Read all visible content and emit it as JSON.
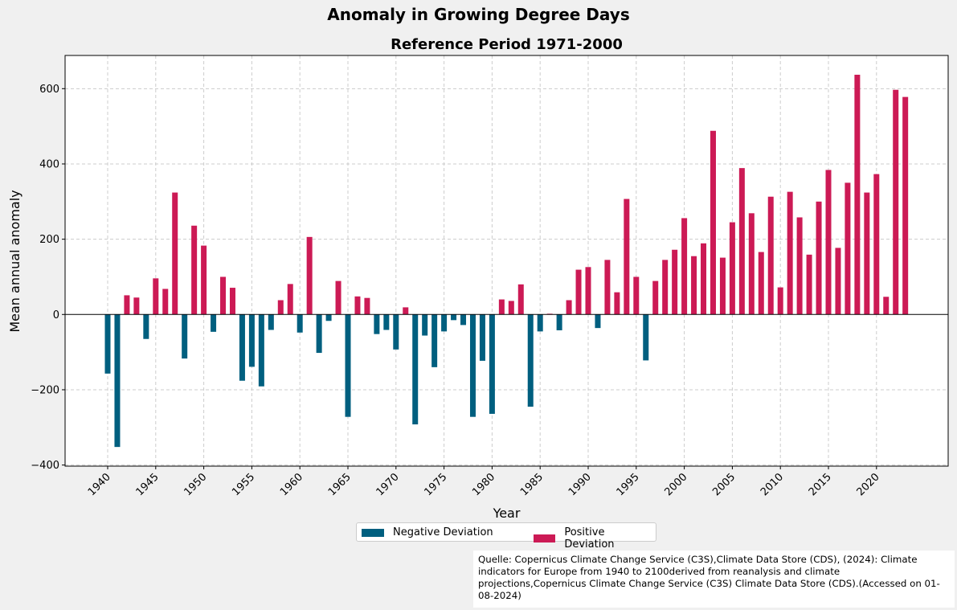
{
  "colors": {
    "negative": "#005f7f",
    "positive": "#cc1a55",
    "grid": "#cccccc",
    "background": "#f0f0f0"
  },
  "chart_data": {
    "type": "bar",
    "suptitle": "Anomaly in Growing Degree Days",
    "title": "Reference Period 1971-2000",
    "xlabel": "Year",
    "ylabel": "Mean annual anomaly",
    "ylim": [
      -405,
      690
    ],
    "yticks": [
      -400,
      -200,
      0,
      200,
      400,
      600
    ],
    "ytick_labels": [
      "−400",
      "−200",
      "0",
      "200",
      "400",
      "600"
    ],
    "xticks": [
      1940,
      1945,
      1950,
      1955,
      1960,
      1965,
      1970,
      1975,
      1980,
      1985,
      1990,
      1995,
      2000,
      2005,
      2010,
      2015,
      2020
    ],
    "grid": true,
    "legend_placement": "below",
    "legend": [
      "Negative Deviation",
      "Positive Deviation"
    ],
    "x": [
      1940,
      1941,
      1942,
      1943,
      1944,
      1945,
      1946,
      1947,
      1948,
      1949,
      1950,
      1951,
      1952,
      1953,
      1954,
      1955,
      1956,
      1957,
      1958,
      1959,
      1960,
      1961,
      1962,
      1963,
      1964,
      1965,
      1966,
      1967,
      1968,
      1969,
      1970,
      1971,
      1972,
      1973,
      1974,
      1975,
      1976,
      1977,
      1978,
      1979,
      1980,
      1981,
      1982,
      1983,
      1984,
      1985,
      1986,
      1987,
      1988,
      1989,
      1990,
      1991,
      1992,
      1993,
      1994,
      1995,
      1996,
      1997,
      1998,
      1999,
      2000,
      2001,
      2002,
      2003,
      2004,
      2005,
      2006,
      2007,
      2008,
      2009,
      2010,
      2011,
      2012,
      2013,
      2014,
      2015,
      2016,
      2017,
      2018,
      2019,
      2020,
      2021,
      2022,
      2023
    ],
    "values": [
      -157,
      -352,
      51,
      45,
      -65,
      96,
      68,
      324,
      -117,
      236,
      183,
      -46,
      100,
      71,
      -176,
      -139,
      -191,
      -41,
      38,
      81,
      -48,
      206,
      -102,
      -17,
      89,
      -272,
      48,
      44,
      -52,
      -41,
      -93,
      19,
      -292,
      -56,
      -140,
      -45,
      -15,
      -28,
      -272,
      -123,
      -264,
      40,
      36,
      80,
      -245,
      -45,
      2,
      -42,
      38,
      119,
      126,
      -36,
      145,
      59,
      307,
      100,
      -122,
      89,
      145,
      172,
      256,
      155,
      189,
      488,
      151,
      245,
      389,
      269,
      166,
      313,
      72,
      326,
      258,
      159,
      300,
      384,
      177,
      350,
      637,
      324,
      373,
      47,
      597,
      578
    ]
  },
  "source": {
    "text": "Quelle: Copernicus Climate Change Service (C3S),Climate Data Store (CDS), (2024): Climate indicators for Europe from 1940 to 2100derived from reanalysis and climate projections,Copernicus Climate Change Service (C3S) Climate Data Store (CDS).(Accessed on 01-08-2024)"
  }
}
